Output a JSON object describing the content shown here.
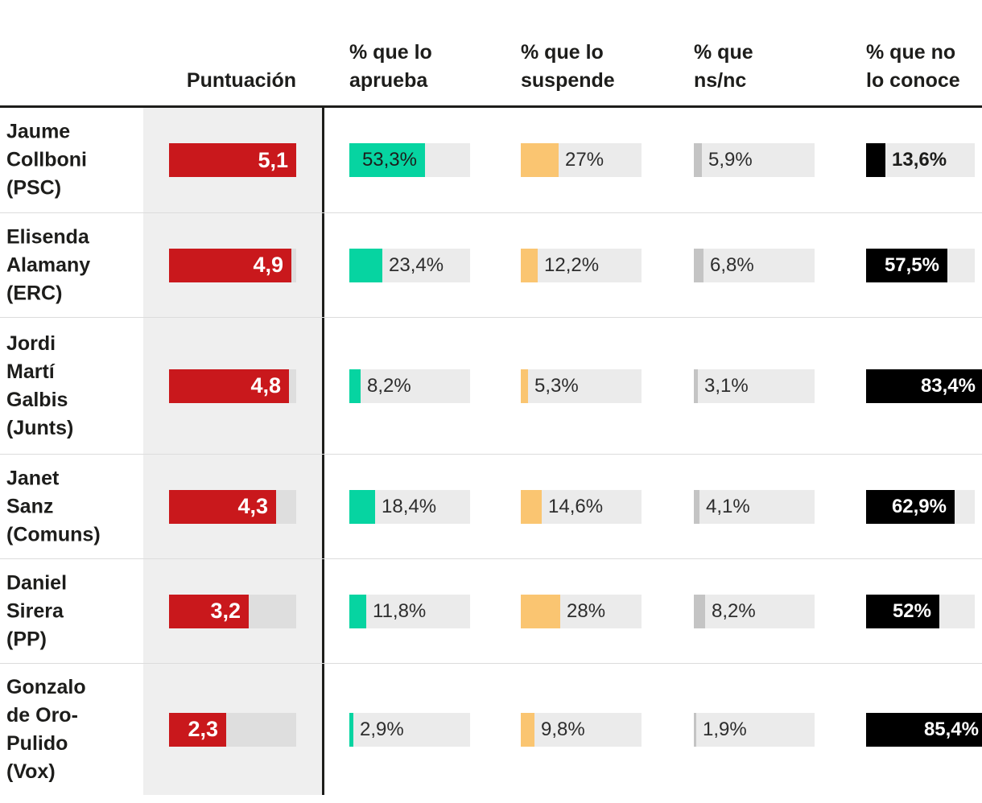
{
  "columns": {
    "puntuacion": {
      "label": "Puntuación"
    },
    "aprueba": {
      "label_lines": [
        "% que lo",
        "aprueba"
      ]
    },
    "suspende": {
      "label_lines": [
        "% que lo",
        "suspende"
      ]
    },
    "nsnc": {
      "label_lines": [
        "% que",
        "ns/nc"
      ]
    },
    "noconoce": {
      "label_lines": [
        "% que no",
        "lo conoce"
      ]
    }
  },
  "scales": {
    "score_max": 5.1,
    "pct_max": 85.4
  },
  "colors": {
    "score_bar": "#c9181c",
    "aprueba_bar": "#06d4a1",
    "suspende_bar": "#fac571",
    "nsnc_bar": "#c4c4c4",
    "noconoce_bar": "#000000",
    "pct_track": "#ebebeb",
    "score_track": "#dedede",
    "panel_bg": "#efefef",
    "rule": "#1d1d1b",
    "separator": "#dcdcdc",
    "text_dark": "#1d1d1b",
    "label_text": "#2d2d2d",
    "label_on_dark": "#ffffff"
  },
  "rows": [
    {
      "name_lines": [
        "Jaume",
        "Collboni",
        "(PSC)"
      ],
      "score": {
        "label": "5,1",
        "value": 5.1
      },
      "aprueba": {
        "label": "53,3%",
        "value": 53.3
      },
      "suspende": {
        "label": "27%",
        "value": 27
      },
      "nsnc": {
        "label": "5,9%",
        "value": 5.9
      },
      "noconoce": {
        "label": "13,6%",
        "value": 13.6
      }
    },
    {
      "name_lines": [
        "Elisenda",
        "Alamany",
        "(ERC)"
      ],
      "score": {
        "label": "4,9",
        "value": 4.9
      },
      "aprueba": {
        "label": "23,4%",
        "value": 23.4
      },
      "suspende": {
        "label": "12,2%",
        "value": 12.2
      },
      "nsnc": {
        "label": "6,8%",
        "value": 6.8
      },
      "noconoce": {
        "label": "57,5%",
        "value": 57.5
      }
    },
    {
      "name_lines": [
        "Jordi",
        "Martí",
        "Galbis",
        "(Junts)"
      ],
      "score": {
        "label": "4,8",
        "value": 4.8
      },
      "aprueba": {
        "label": "8,2%",
        "value": 8.2
      },
      "suspende": {
        "label": "5,3%",
        "value": 5.3
      },
      "nsnc": {
        "label": "3,1%",
        "value": 3.1
      },
      "noconoce": {
        "label": "83,4%",
        "value": 83.4
      }
    },
    {
      "name_lines": [
        "Janet",
        "Sanz",
        "(Comuns)"
      ],
      "score": {
        "label": "4,3",
        "value": 4.3
      },
      "aprueba": {
        "label": "18,4%",
        "value": 18.4
      },
      "suspende": {
        "label": "14,6%",
        "value": 14.6
      },
      "nsnc": {
        "label": "4,1%",
        "value": 4.1
      },
      "noconoce": {
        "label": "62,9%",
        "value": 62.9
      }
    },
    {
      "name_lines": [
        "Daniel",
        "Sirera",
        "(PP)"
      ],
      "score": {
        "label": "3,2",
        "value": 3.2
      },
      "aprueba": {
        "label": "11,8%",
        "value": 11.8
      },
      "suspende": {
        "label": "28%",
        "value": 28
      },
      "nsnc": {
        "label": "8,2%",
        "value": 8.2
      },
      "noconoce": {
        "label": "52%",
        "value": 52
      }
    },
    {
      "name_lines": [
        "Gonzalo",
        "de Oro-",
        "Pulido",
        "(Vox)"
      ],
      "score": {
        "label": "2,3",
        "value": 2.3
      },
      "aprueba": {
        "label": "2,9%",
        "value": 2.9
      },
      "suspende": {
        "label": "9,8%",
        "value": 9.8
      },
      "nsnc": {
        "label": "1,9%",
        "value": 1.9
      },
      "noconoce": {
        "label": "85,4%",
        "value": 85.4
      }
    }
  ],
  "chart_data": {
    "type": "bar",
    "title": "",
    "categories": [
      "Jaume Collboni (PSC)",
      "Elisenda Alamany (ERC)",
      "Jordi Martí Galbis (Junts)",
      "Janet Sanz (Comuns)",
      "Daniel Sirera (PP)",
      "Gonzalo de Oro-Pulido (Vox)"
    ],
    "series": [
      {
        "name": "Puntuación",
        "values": [
          5.1,
          4.9,
          4.8,
          4.3,
          3.2,
          2.3
        ]
      },
      {
        "name": "% que lo aprueba",
        "values": [
          53.3,
          23.4,
          8.2,
          18.4,
          11.8,
          2.9
        ]
      },
      {
        "name": "% que lo suspende",
        "values": [
          27,
          12.2,
          5.3,
          14.6,
          28,
          9.8
        ]
      },
      {
        "name": "% que ns/nc",
        "values": [
          5.9,
          6.8,
          3.1,
          4.1,
          8.2,
          1.9
        ]
      },
      {
        "name": "% que no lo conoce",
        "values": [
          13.6,
          57.5,
          83.4,
          62.9,
          52,
          85.4
        ]
      }
    ],
    "layout_hints": {
      "orientation": "horizontal",
      "score_axis_range": [
        0,
        5.1
      ],
      "pct_axis_range": [
        0,
        85.4
      ],
      "grid": false,
      "legend": "column headers"
    }
  }
}
